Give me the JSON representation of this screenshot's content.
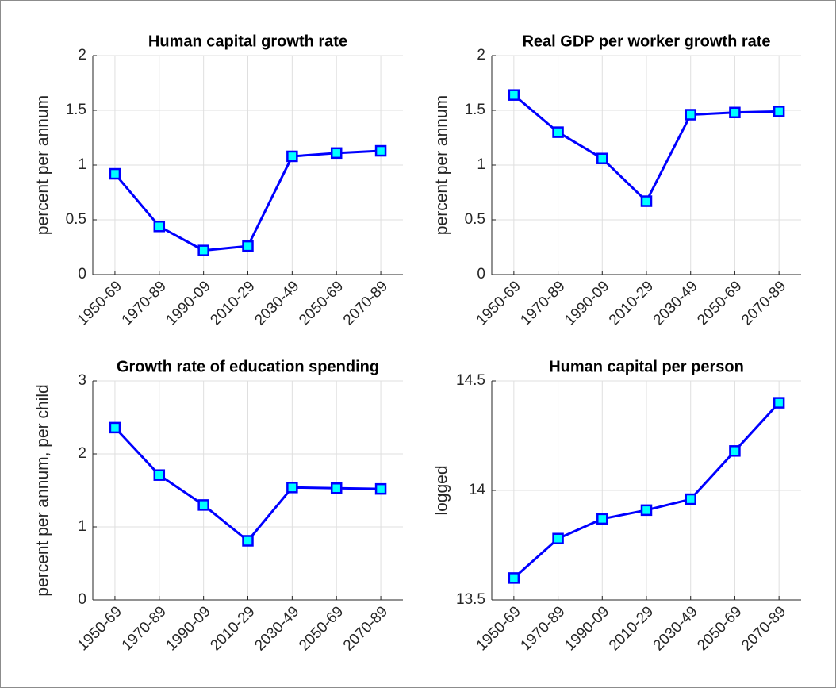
{
  "chart_data": [
    {
      "type": "line",
      "title": "Human capital growth rate",
      "ylabel": "percent per annum",
      "categories": [
        "1950-69",
        "1970-89",
        "1990-09",
        "2010-29",
        "2030-49",
        "2050-69",
        "2070-89"
      ],
      "values": [
        0.92,
        0.44,
        0.22,
        0.26,
        1.08,
        1.11,
        1.13
      ],
      "color": "#0000ff",
      "marker_fill": "#00ffff",
      "ylim": [
        0,
        2
      ],
      "yticks": [
        0,
        0.5,
        1,
        1.5,
        2
      ],
      "grid": true
    },
    {
      "type": "line",
      "title": "Real GDP per worker growth rate",
      "ylabel": "percent per annum",
      "categories": [
        "1950-69",
        "1970-89",
        "1990-09",
        "2010-29",
        "2030-49",
        "2050-69",
        "2070-89"
      ],
      "values": [
        1.64,
        1.3,
        1.06,
        0.67,
        1.46,
        1.48,
        1.49
      ],
      "color": "#0000ff",
      "marker_fill": "#00ffff",
      "ylim": [
        0,
        2
      ],
      "yticks": [
        0,
        0.5,
        1,
        1.5,
        2
      ],
      "grid": true
    },
    {
      "type": "line",
      "title": "Growth rate of education spending",
      "ylabel": "percent per annum, per child",
      "categories": [
        "1950-69",
        "1970-89",
        "1990-09",
        "2010-29",
        "2030-49",
        "2050-69",
        "2070-89"
      ],
      "values": [
        2.36,
        1.71,
        1.3,
        0.81,
        1.54,
        1.53,
        1.52
      ],
      "color": "#0000ff",
      "marker_fill": "#00ffff",
      "ylim": [
        0,
        3
      ],
      "yticks": [
        0,
        1,
        2,
        3
      ],
      "grid": true
    },
    {
      "type": "line",
      "title": "Human capital per person",
      "ylabel": "logged",
      "categories": [
        "1950-69",
        "1970-89",
        "1990-09",
        "2010-29",
        "2030-49",
        "2050-69",
        "2070-89"
      ],
      "values": [
        13.6,
        13.78,
        13.87,
        13.91,
        13.96,
        14.18,
        14.4
      ],
      "color": "#0000ff",
      "marker_fill": "#00ffff",
      "ylim": [
        13.5,
        14.5
      ],
      "yticks": [
        13.5,
        14,
        14.5
      ],
      "grid": true
    }
  ]
}
